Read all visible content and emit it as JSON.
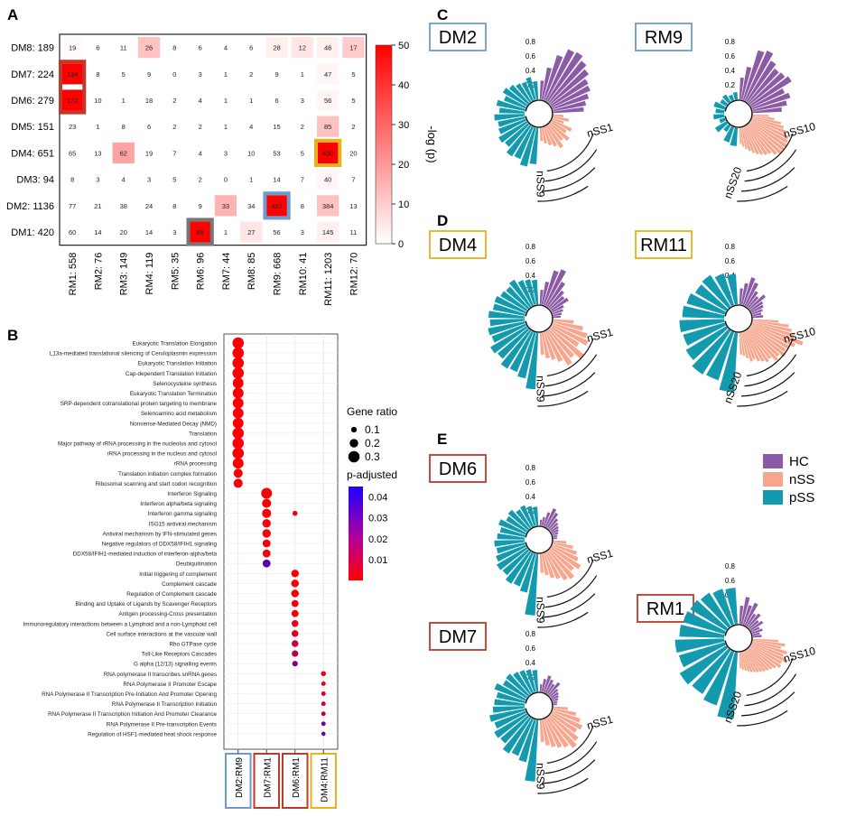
{
  "panel_letters": {
    "a": "A",
    "b": "B",
    "c": "C",
    "d": "D",
    "e": "E"
  },
  "colors": {
    "HC": "#8c5ba6",
    "nSS": "#f7a58c",
    "pSS": "#139aae",
    "blue_box": "#6b9bd1",
    "red_box": "#c0392b",
    "yellow_box": "#e7b21a",
    "gray_box": "#777777"
  },
  "chart_data": [
    {
      "id": "A",
      "type": "heatmap",
      "title": "",
      "rows": [
        "DM8: 189",
        "DM7: 224",
        "DM6: 279",
        "DM5: 151",
        "DM4: 651",
        "DM3:   94",
        "DM2: 1136",
        "DM1: 420"
      ],
      "cols": [
        "RM1: 558",
        "RM2: 76",
        "RM3: 149",
        "RM4: 119",
        "RM5: 35",
        "RM6: 96",
        "RM7: 44",
        "RM8: 85",
        "RM9: 668",
        "RM10: 41",
        "RM11: 1203",
        "RM12: 70"
      ],
      "values": [
        [
          19,
          6,
          11,
          26,
          8,
          6,
          4,
          6,
          28,
          12,
          46,
          17
        ],
        [
          134,
          8,
          5,
          9,
          0,
          3,
          1,
          2,
          9,
          1,
          47,
          5
        ],
        [
          172,
          10,
          1,
          18,
          2,
          4,
          1,
          1,
          6,
          3,
          56,
          5
        ],
        [
          23,
          1,
          8,
          6,
          2,
          2,
          1,
          4,
          15,
          2,
          85,
          2
        ],
        [
          65,
          13,
          62,
          19,
          7,
          4,
          3,
          10,
          53,
          5,
          400,
          20
        ],
        [
          8,
          3,
          4,
          3,
          5,
          2,
          0,
          1,
          14,
          7,
          40,
          7
        ],
        [
          77,
          21,
          38,
          24,
          8,
          9,
          33,
          34,
          487,
          8,
          384,
          13
        ],
        [
          60,
          14,
          20,
          14,
          3,
          66,
          1,
          27,
          56,
          3,
          145,
          11
        ]
      ],
      "neglogp": [
        [
          1,
          0,
          0,
          12,
          0,
          0,
          0,
          0,
          3,
          5,
          3,
          10
        ],
        [
          52,
          0,
          0,
          0,
          0,
          0,
          0,
          0,
          0,
          0,
          2,
          0
        ],
        [
          50,
          0,
          0,
          0,
          0,
          0,
          0,
          0,
          0,
          0,
          2,
          0
        ],
        [
          0,
          0,
          0,
          0,
          0,
          0,
          0,
          0,
          0,
          0,
          12,
          0
        ],
        [
          0,
          0,
          18,
          0,
          0,
          0,
          0,
          0,
          0,
          0,
          52,
          0
        ],
        [
          0,
          0,
          0,
          0,
          0,
          0,
          0,
          0,
          0,
          0,
          2,
          0
        ],
        [
          0,
          0,
          0,
          0,
          0,
          0,
          15,
          0,
          52,
          0,
          12,
          0
        ],
        [
          0,
          0,
          0,
          0,
          0,
          52,
          0,
          5,
          0,
          0,
          3,
          0
        ]
      ],
      "highlights": [
        {
          "row": 1,
          "col": 0,
          "rowspan": 2,
          "color": "red"
        },
        {
          "row": 4,
          "col": 10,
          "rowspan": 1,
          "color": "yellow"
        },
        {
          "row": 6,
          "col": 8,
          "rowspan": 1,
          "color": "blue"
        },
        {
          "row": 7,
          "col": 5,
          "rowspan": 1,
          "color": "gray"
        }
      ],
      "colorbar": {
        "label": "-log (p)",
        "ticks": [
          "50",
          "40",
          "30",
          "20",
          "10",
          "0"
        ],
        "range": [
          0,
          50
        ]
      }
    },
    {
      "id": "B",
      "type": "scatter",
      "xcategories": [
        "DM2:RM9",
        "DM7:RM1",
        "DM6:RM1",
        "DM4:RM11"
      ],
      "terms": [
        "Eukaryotic Translation Elongation",
        "L13a-mediated translational silencing of Ceruloplasmin expression",
        "Eukaryotic Translation Initiation",
        "Cap-dependent Translation Initiation",
        "Selenocysteine synthesis",
        "Eukaryotic Translation Termination",
        "SRP-dependent cotranslational protein targeting to membrane",
        "Selenoamino acid metabolism",
        "Nonsense-Mediated Decay (NMD)",
        "Translation",
        "Major pathway of rRNA processing in the nucleolus and cytosol",
        "rRNA processing in the nucleus and cytosol",
        "rRNA processing",
        "Translation initiation complex formation",
        "Ribosomal scanning and start codon recognition",
        "Interferon Signaling",
        "Interferon alpha/beta signaling",
        "Interferon gamma signaling",
        "ISG15 antiviral mechanism",
        "Antiviral mechanism by IFN-stimulated genes",
        "Negative regulators of DDX58/IFIH1 signaling",
        "DDX58/IFIH1-mediated induction of interferon-alpha/beta",
        "Deubiquitination",
        "Initial triggering of complement",
        "Complement cascade",
        "Regulation of Complement cascade",
        "Binding and Uptake of Ligands by Scavenger Receptors",
        "Antigen processing-Cross presentation",
        "Immunoregulatory interactions between a Lymphoid and a non-Lymphoid cell",
        "Cell surface interactions at the vascular wall",
        "Rho GTPase cycle",
        "Toll-Like Receptors Cascades",
        "G alpha (12/13) signalling events",
        "RNA polymerase II transcribes snRNA genes",
        "RNA Polymerase II Promoter Escape",
        "RNA Polymerase II Transcription Pre-Initiation And Promoter Opening",
        "RNA Polymerase II Transcription Initiation",
        "RNA Polymerase II Transcription Initiation And Promoter Clearance",
        "RNA Polymerase II Pre-transcription Events",
        "Regulation of HSF1-mediated heat shock response"
      ],
      "points": [
        {
          "t": 0,
          "c": 0,
          "r": 0.3,
          "p": 0.001
        },
        {
          "t": 1,
          "c": 0,
          "r": 0.3,
          "p": 0.001
        },
        {
          "t": 2,
          "c": 0,
          "r": 0.3,
          "p": 0.001
        },
        {
          "t": 3,
          "c": 0,
          "r": 0.3,
          "p": 0.001
        },
        {
          "t": 4,
          "c": 0,
          "r": 0.28,
          "p": 0.001
        },
        {
          "t": 5,
          "c": 0,
          "r": 0.28,
          "p": 0.001
        },
        {
          "t": 6,
          "c": 0,
          "r": 0.28,
          "p": 0.001
        },
        {
          "t": 7,
          "c": 0,
          "r": 0.28,
          "p": 0.001
        },
        {
          "t": 8,
          "c": 0,
          "r": 0.28,
          "p": 0.001
        },
        {
          "t": 9,
          "c": 0,
          "r": 0.3,
          "p": 0.001
        },
        {
          "t": 10,
          "c": 0,
          "r": 0.3,
          "p": 0.001
        },
        {
          "t": 11,
          "c": 0,
          "r": 0.3,
          "p": 0.001
        },
        {
          "t": 12,
          "c": 0,
          "r": 0.28,
          "p": 0.001
        },
        {
          "t": 13,
          "c": 0,
          "r": 0.22,
          "p": 0.001
        },
        {
          "t": 14,
          "c": 0,
          "r": 0.22,
          "p": 0.001
        },
        {
          "t": 15,
          "c": 1,
          "r": 0.28,
          "p": 0.001
        },
        {
          "t": 16,
          "c": 1,
          "r": 0.22,
          "p": 0.001
        },
        {
          "t": 17,
          "c": 1,
          "r": 0.22,
          "p": 0.001
        },
        {
          "t": 17,
          "c": 2,
          "r": 0.08,
          "p": 0.004
        },
        {
          "t": 18,
          "c": 1,
          "r": 0.2,
          "p": 0.001
        },
        {
          "t": 19,
          "c": 1,
          "r": 0.2,
          "p": 0.001
        },
        {
          "t": 20,
          "c": 1,
          "r": 0.18,
          "p": 0.002
        },
        {
          "t": 21,
          "c": 1,
          "r": 0.18,
          "p": 0.002
        },
        {
          "t": 22,
          "c": 1,
          "r": 0.18,
          "p": 0.036
        },
        {
          "t": 23,
          "c": 2,
          "r": 0.17,
          "p": 0.001
        },
        {
          "t": 24,
          "c": 2,
          "r": 0.17,
          "p": 0.001
        },
        {
          "t": 25,
          "c": 2,
          "r": 0.17,
          "p": 0.001
        },
        {
          "t": 26,
          "c": 2,
          "r": 0.15,
          "p": 0.002
        },
        {
          "t": 27,
          "c": 2,
          "r": 0.15,
          "p": 0.003
        },
        {
          "t": 28,
          "c": 2,
          "r": 0.14,
          "p": 0.004
        },
        {
          "t": 29,
          "c": 2,
          "r": 0.14,
          "p": 0.006
        },
        {
          "t": 30,
          "c": 2,
          "r": 0.14,
          "p": 0.012
        },
        {
          "t": 31,
          "c": 2,
          "r": 0.13,
          "p": 0.016
        },
        {
          "t": 32,
          "c": 2,
          "r": 0.1,
          "p": 0.026
        },
        {
          "t": 33,
          "c": 3,
          "r": 0.08,
          "p": 0.004
        },
        {
          "t": 34,
          "c": 3,
          "r": 0.06,
          "p": 0.006
        },
        {
          "t": 35,
          "c": 3,
          "r": 0.06,
          "p": 0.008
        },
        {
          "t": 36,
          "c": 3,
          "r": 0.06,
          "p": 0.01
        },
        {
          "t": 37,
          "c": 3,
          "r": 0.06,
          "p": 0.012
        },
        {
          "t": 38,
          "c": 3,
          "r": 0.06,
          "p": 0.03
        },
        {
          "t": 39,
          "c": 3,
          "r": 0.05,
          "p": 0.034
        }
      ],
      "size_legend": {
        "title": "Gene ratio",
        "values": [
          0.1,
          0.2,
          0.3
        ],
        "labels": [
          "0.1",
          "0.2",
          "0.3"
        ]
      },
      "color_legend": {
        "title": "p-adjusted",
        "ticks": [
          "0.04",
          "0.03",
          "0.02",
          "0.01"
        ],
        "range": [
          0,
          0.045
        ]
      }
    },
    {
      "id": "C-E",
      "type": "bar",
      "polar": true,
      "radial_ticks": [
        "0.8",
        "0.6",
        "0.4",
        "0.2"
      ],
      "legend": [
        "HC",
        "nSS",
        "pSS"
      ],
      "plots": [
        {
          "title": "DM2",
          "box": "blue",
          "labels": [
            "nSS1",
            "nSS9"
          ],
          "HC": [
            0.26,
            0.45,
            0.65,
            0.78,
            0.8,
            0.74,
            0.68,
            0.6,
            0.58,
            0.52,
            0.46,
            0.42
          ],
          "nSS": [
            0.14,
            0.22,
            0.16,
            0.3,
            0.25,
            0.34,
            0.28,
            0.36,
            0.3,
            0.26,
            0.22,
            0.18
          ],
          "pSS": [
            0.5,
            0.55,
            0.48,
            0.5,
            0.42,
            0.45,
            0.4,
            0.38,
            0.42,
            0.35,
            0.4,
            0.32,
            0.38,
            0.34,
            0.3,
            0.28,
            0.32,
            0.25
          ]
        },
        {
          "title": "RM9",
          "box": "blue",
          "labels": [
            "nSS10",
            "nSS20"
          ],
          "HC": [
            0.3,
            0.46,
            0.72,
            0.76,
            0.66,
            0.6,
            0.62,
            0.66,
            0.5,
            0.55,
            0.48,
            0.4
          ],
          "nSS": [
            0.22,
            0.3,
            0.4,
            0.45,
            0.5,
            0.56,
            0.58,
            0.6,
            0.6,
            0.6,
            0.56,
            0.5,
            0.48,
            0.45,
            0.42,
            0.38,
            0.34,
            0.3,
            0.26,
            0.22
          ],
          "pSS": [
            0.25,
            0.22,
            0.1,
            0.18,
            0.08,
            0.15,
            0.12,
            0.16,
            0.1,
            0.12,
            0.08,
            0.1
          ]
        },
        {
          "title": "DM4",
          "box": "yellow",
          "labels": [
            "nSS1",
            "nSS9"
          ],
          "HC": [
            0.2,
            0.32,
            0.5,
            0.55,
            0.4,
            0.3,
            0.25,
            0.28,
            0.18,
            0.15,
            0.12,
            0.1
          ],
          "nSS": [
            0.28,
            0.42,
            0.5,
            0.55,
            0.45,
            0.6,
            0.5,
            0.56,
            0.46,
            0.4,
            0.36,
            0.3
          ],
          "pSS": [
            0.78,
            0.65,
            0.6,
            0.62,
            0.55,
            0.58,
            0.5,
            0.52,
            0.48,
            0.5,
            0.45,
            0.46,
            0.42,
            0.4,
            0.44,
            0.38,
            0.36,
            0.34
          ]
        },
        {
          "title": "RM11",
          "box": "yellow",
          "labels": [
            "nSS10",
            "nSS20"
          ],
          "HC": [
            0.22,
            0.3,
            0.4,
            0.35,
            0.25,
            0.2,
            0.28,
            0.2,
            0.18,
            0.15,
            0.12,
            0.14
          ],
          "nSS": [
            0.35,
            0.5,
            0.55,
            0.6,
            0.75,
            0.66,
            0.6,
            0.58,
            0.62,
            0.55,
            0.58,
            0.5,
            0.52,
            0.48,
            0.45,
            0.4,
            0.42,
            0.36,
            0.32,
            0.3
          ],
          "pSS": [
            0.82,
            0.7,
            0.72,
            0.65,
            0.6,
            0.62,
            0.58,
            0.55,
            0.5,
            0.52,
            0.46,
            0.42
          ]
        },
        {
          "title": "DM6",
          "box": "red",
          "labels": [
            "nSS1",
            "nSS9"
          ],
          "HC": [
            0.08,
            0.12,
            0.2,
            0.28,
            0.24,
            0.18,
            0.14,
            0.12,
            0.1,
            0.08,
            0.06,
            0.05
          ],
          "nSS": [
            0.18,
            0.28,
            0.35,
            0.4,
            0.48,
            0.42,
            0.5,
            0.46,
            0.4,
            0.36,
            0.3,
            0.26
          ],
          "pSS": [
            0.85,
            0.55,
            0.5,
            0.52,
            0.46,
            0.48,
            0.44,
            0.4,
            0.42,
            0.38,
            0.35,
            0.4,
            0.33,
            0.36,
            0.3,
            0.32,
            0.28,
            0.26
          ]
        },
        {
          "title": "RM1",
          "box": "red",
          "labels": [
            "nSS10",
            "nSS20"
          ],
          "HC": [
            0.25,
            0.38,
            0.28,
            0.34,
            0.2,
            0.24,
            0.16,
            0.2,
            0.12,
            0.15,
            0.1,
            0.12
          ],
          "nSS": [
            0.35,
            0.45,
            0.4,
            0.5,
            0.46,
            0.55,
            0.48,
            0.5,
            0.45,
            0.42,
            0.4,
            0.38,
            0.36,
            0.34,
            0.32,
            0.3,
            0.28,
            0.26,
            0.24,
            0.22
          ],
          "pSS": [
            0.92,
            0.78,
            0.72,
            0.75,
            0.66,
            0.68,
            0.62,
            0.6,
            0.58,
            0.55,
            0.52,
            0.5
          ]
        },
        {
          "title": "DM7",
          "box": "red",
          "labels": [
            "nSS1",
            "nSS9"
          ],
          "HC": [
            0.1,
            0.18,
            0.24,
            0.2,
            0.16,
            0.22,
            0.14,
            0.12,
            0.1,
            0.08,
            0.06,
            0.05
          ],
          "nSS": [
            0.2,
            0.32,
            0.4,
            0.46,
            0.42,
            0.5,
            0.55,
            0.48,
            0.44,
            0.4,
            0.36,
            0.3
          ],
          "pSS": [
            0.85,
            0.6,
            0.55,
            0.58,
            0.5,
            0.52,
            0.46,
            0.5,
            0.44,
            0.42,
            0.4,
            0.46,
            0.38,
            0.4,
            0.36,
            0.34,
            0.32,
            0.3
          ]
        }
      ]
    }
  ]
}
